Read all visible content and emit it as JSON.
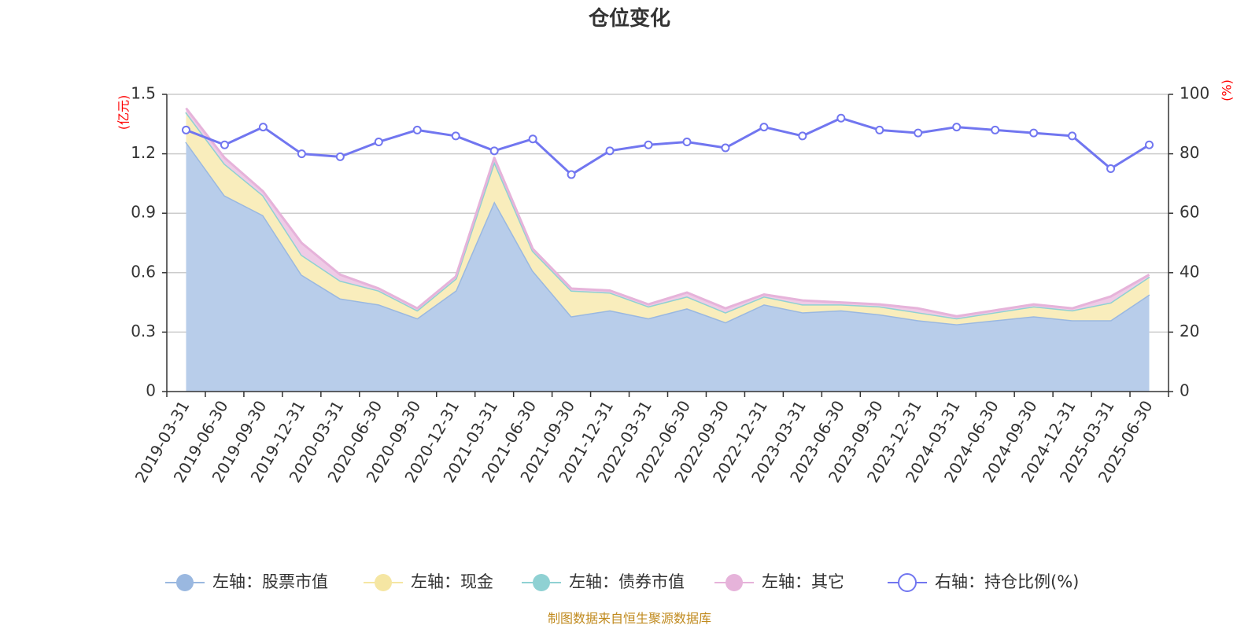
{
  "chart_data": {
    "type": "area",
    "title": "仓位变化",
    "left_unit": "(亿元)",
    "right_unit": "(%)",
    "source_note": "制图数据来自恒生聚源数据库",
    "left_axis": {
      "min": 0,
      "max": 1.5,
      "ticks": [
        "0",
        "0.3",
        "0.6",
        "0.9",
        "1.2",
        "1.5"
      ]
    },
    "right_axis": {
      "min": 0,
      "max": 100,
      "ticks": [
        "0",
        "20",
        "40",
        "60",
        "80",
        "100"
      ]
    },
    "categories": [
      "2019-03-31",
      "2019-06-30",
      "2019-09-30",
      "2019-12-31",
      "2020-03-31",
      "2020-06-30",
      "2020-09-30",
      "2020-12-31",
      "2021-03-31",
      "2021-06-30",
      "2021-09-30",
      "2021-12-31",
      "2022-03-31",
      "2022-06-30",
      "2022-09-30",
      "2022-12-31",
      "2023-03-31",
      "2023-06-30",
      "2023-09-30",
      "2023-12-31",
      "2024-03-31",
      "2024-06-30",
      "2024-09-30",
      "2024-12-31",
      "2025-03-31",
      "2025-06-30"
    ],
    "series": [
      {
        "name": "左轴：股票市值",
        "axis": "left",
        "color": "#9ab8e0",
        "fill": "#b8cdea",
        "values": [
          1.26,
          0.99,
          0.89,
          0.59,
          0.47,
          0.44,
          0.37,
          0.51,
          0.96,
          0.61,
          0.38,
          0.41,
          0.37,
          0.42,
          0.35,
          0.44,
          0.4,
          0.41,
          0.39,
          0.36,
          0.34,
          0.36,
          0.38,
          0.36,
          0.36,
          0.49
        ]
      },
      {
        "name": "左轴：现金",
        "axis": "left",
        "color": "#f5e6a3",
        "fill": "#f9edbc",
        "values": [
          0.15,
          0.16,
          0.1,
          0.1,
          0.09,
          0.07,
          0.04,
          0.06,
          0.2,
          0.1,
          0.13,
          0.09,
          0.06,
          0.06,
          0.05,
          0.04,
          0.04,
          0.03,
          0.04,
          0.04,
          0.03,
          0.04,
          0.05,
          0.05,
          0.09,
          0.09
        ]
      },
      {
        "name": "左轴：债券市值",
        "axis": "left",
        "color": "#8fd1d3",
        "fill": "#b5e2e3",
        "values": [
          0,
          0,
          0,
          0,
          0,
          0,
          0,
          0,
          0,
          0,
          0,
          0,
          0,
          0,
          0,
          0,
          0,
          0,
          0,
          0,
          0,
          0,
          0,
          0,
          0,
          0
        ]
      },
      {
        "name": "左轴：其它",
        "axis": "left",
        "color": "#e6b3da",
        "fill": "#efcbe6",
        "values": [
          0.02,
          0.03,
          0.02,
          0.06,
          0.03,
          0.01,
          0.01,
          0.01,
          0.02,
          0.01,
          0.01,
          0.01,
          0.01,
          0.02,
          0.02,
          0.01,
          0.02,
          0.01,
          0.01,
          0.02,
          0.01,
          0.01,
          0.01,
          0.01,
          0.03,
          0.01
        ]
      },
      {
        "name": "右轴：持仓比例(%)",
        "axis": "right",
        "color": "#7176f0",
        "values": [
          88,
          83,
          89,
          80,
          79,
          84,
          88,
          86,
          81,
          85,
          73,
          81,
          83,
          84,
          82,
          89,
          86,
          92,
          88,
          87,
          89,
          88,
          87,
          86,
          75,
          83
        ]
      }
    ],
    "grid": true,
    "legend_position": "bottom"
  }
}
